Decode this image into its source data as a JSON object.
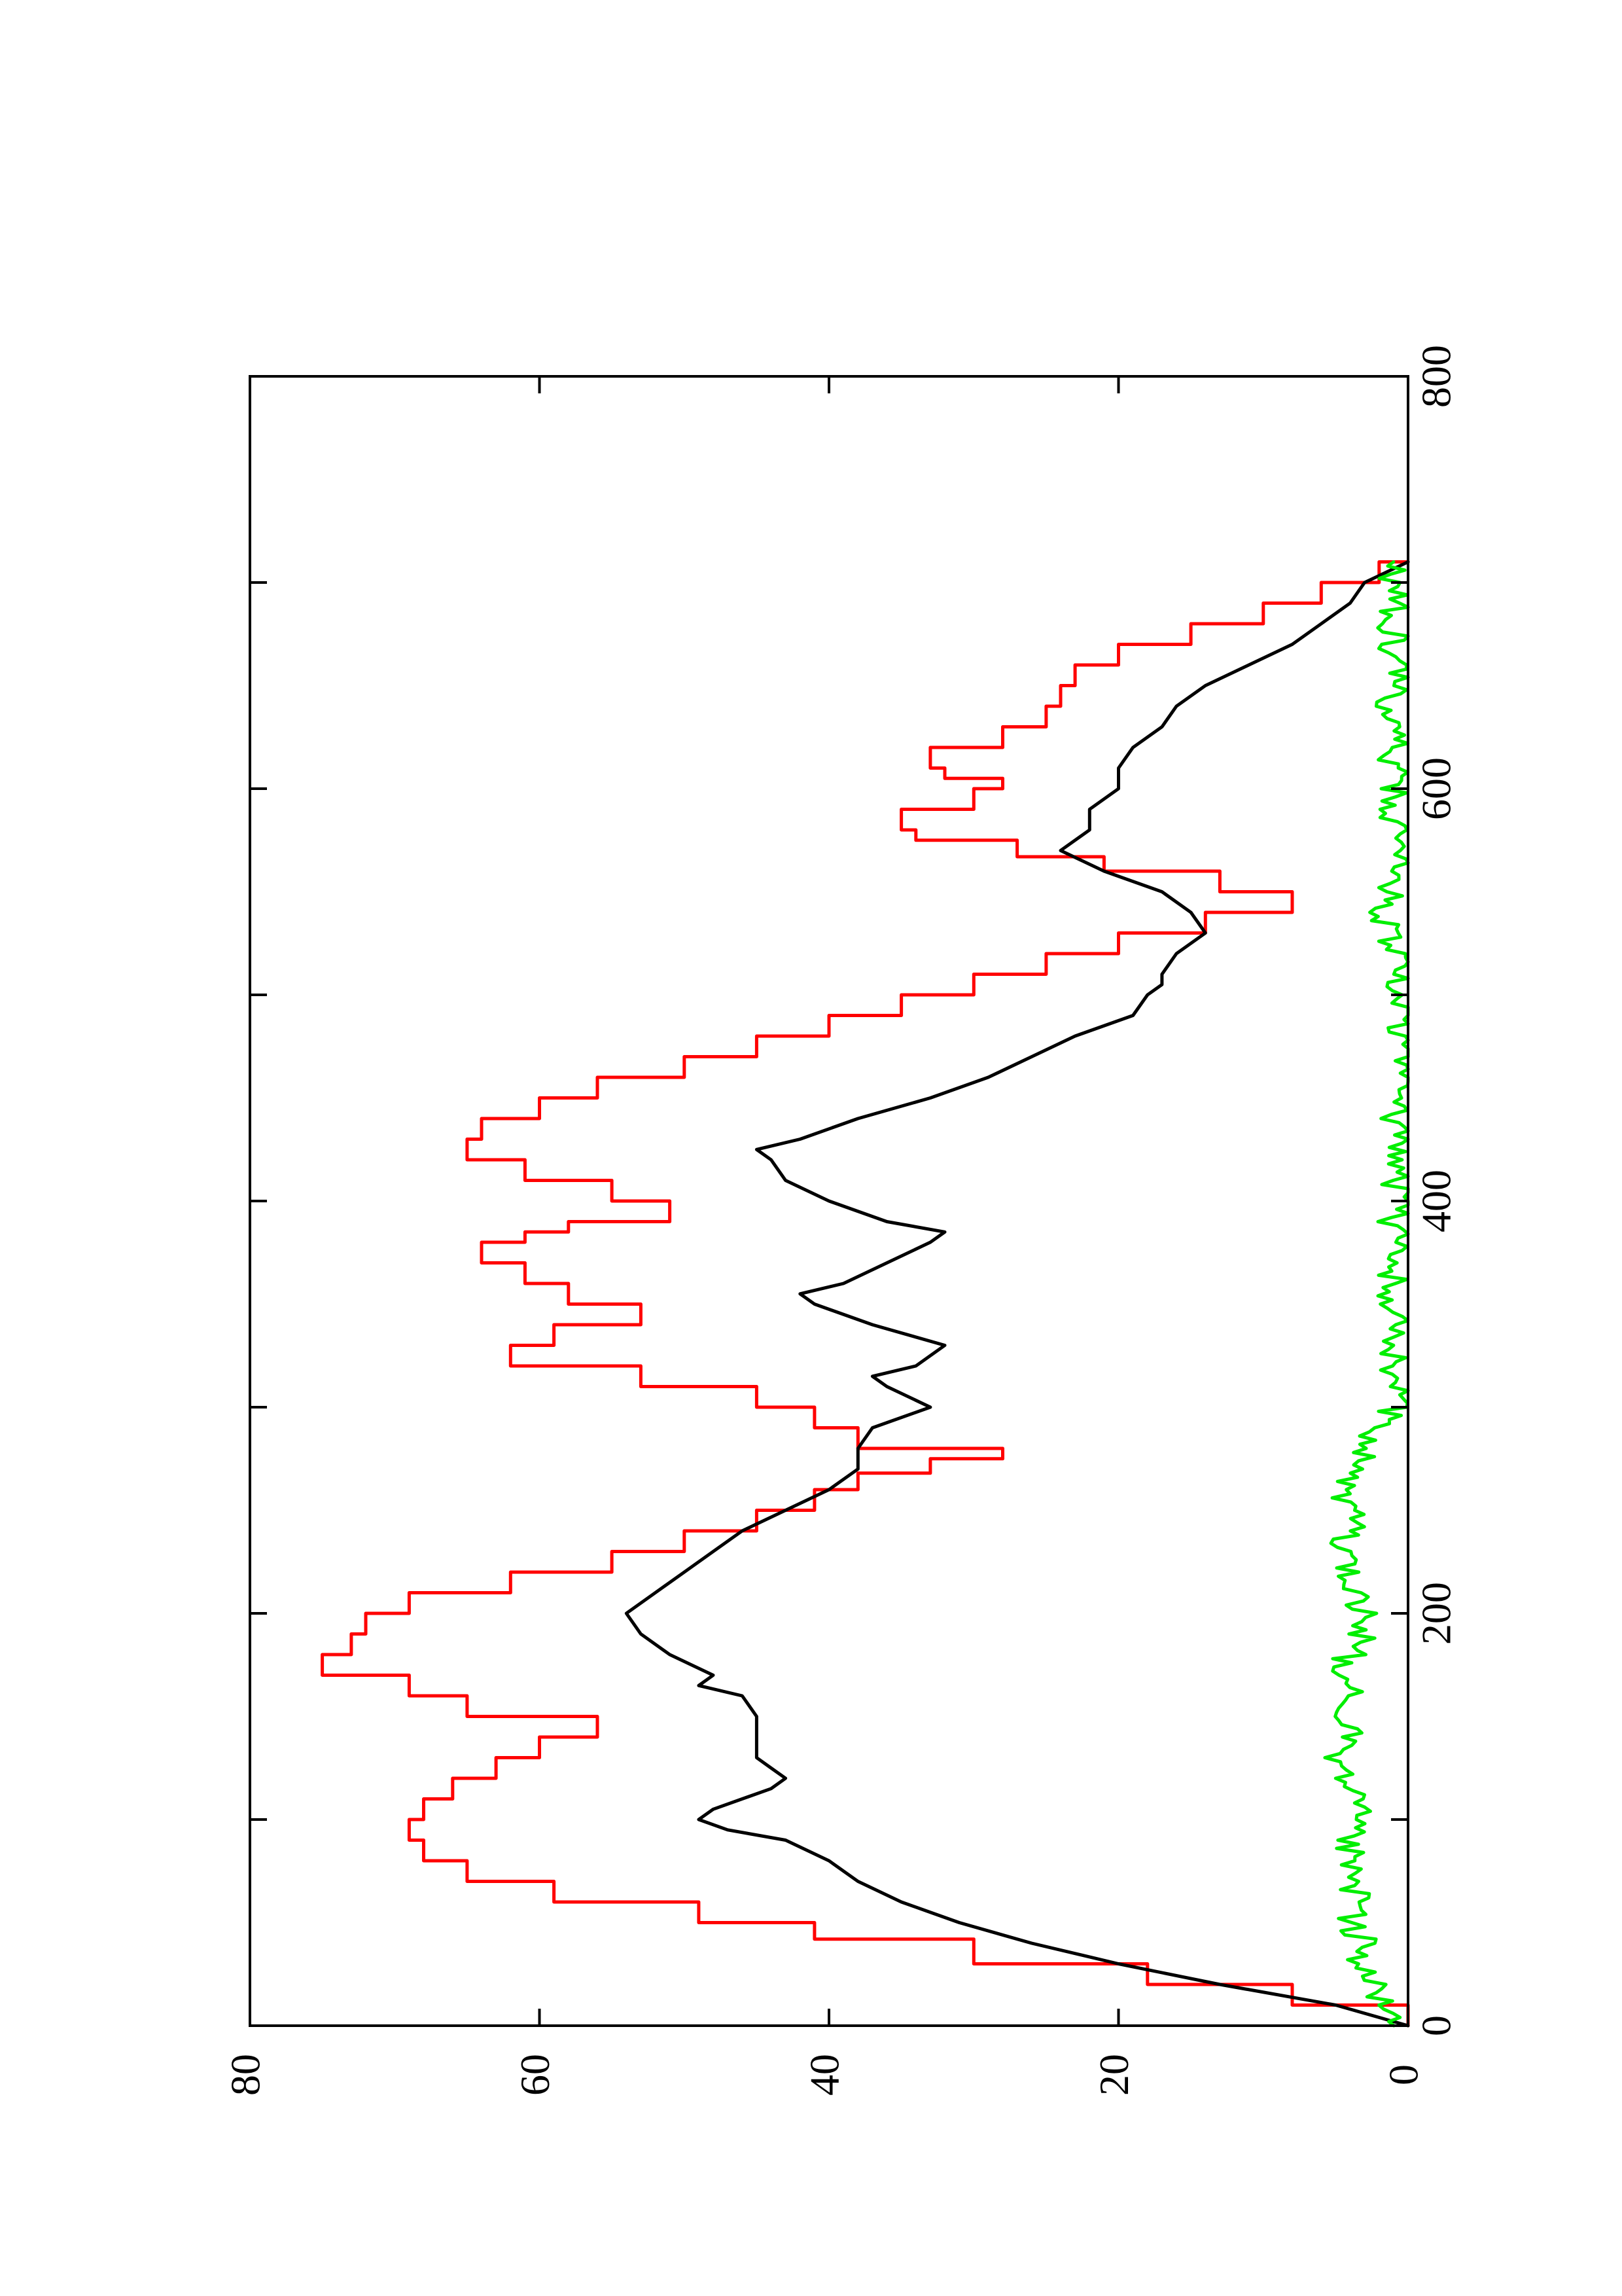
{
  "chart_data": {
    "type": "line",
    "orientation": "rotated-90-clockwise",
    "title": "",
    "xlabel": "",
    "ylabel": "",
    "xlim": [
      0,
      800
    ],
    "ylim": [
      0,
      80
    ],
    "x_ticks": [
      0,
      200,
      400,
      600,
      800
    ],
    "x_minor_ticks": [
      100,
      300,
      500,
      700
    ],
    "y_ticks": [
      0,
      20,
      40,
      60,
      80
    ],
    "x_tick_labels": [
      "0",
      "200",
      "400",
      "600",
      "800"
    ],
    "y_tick_labels": [
      "0",
      "20",
      "40",
      "60",
      "80"
    ],
    "grid": false,
    "legend": "none",
    "series": [
      {
        "color": "#ff0000",
        "style": "step",
        "x": [
          0,
          10,
          20,
          30,
          42,
          50,
          60,
          70,
          80,
          90,
          100,
          110,
          120,
          130,
          140,
          150,
          160,
          170,
          180,
          190,
          200,
          210,
          220,
          230,
          240,
          250,
          260,
          268,
          275,
          280,
          290,
          300,
          310,
          320,
          330,
          340,
          350,
          360,
          370,
          380,
          385,
          390,
          400,
          410,
          420,
          430,
          440,
          450,
          460,
          470,
          480,
          490,
          500,
          510,
          520,
          530,
          540,
          550,
          560,
          567,
          575,
          580,
          590,
          600,
          605,
          610,
          620,
          630,
          640,
          650,
          660,
          670,
          680,
          690,
          700,
          710
        ],
        "values": [
          0,
          8,
          18,
          30,
          41,
          49,
          59,
          65,
          68,
          69,
          68,
          66,
          63,
          60,
          56,
          65,
          69,
          75,
          73,
          72,
          69,
          62,
          55,
          50,
          45,
          41,
          38,
          33,
          28,
          38,
          41,
          45,
          53,
          62,
          59,
          53,
          58,
          61,
          64,
          61,
          58,
          51,
          55,
          61,
          65,
          64,
          60,
          56,
          50,
          45,
          40,
          35,
          30,
          25,
          20,
          14,
          8,
          13,
          21,
          27,
          34,
          35,
          30,
          28,
          32,
          33,
          28,
          25,
          24,
          23,
          20,
          15,
          10,
          6,
          2,
          0
        ]
      },
      {
        "color": "#000000",
        "style": "line",
        "x": [
          0,
          10,
          20,
          30,
          40,
          50,
          60,
          70,
          80,
          90,
          95,
          100,
          105,
          110,
          115,
          120,
          125,
          130,
          140,
          150,
          160,
          165,
          170,
          180,
          190,
          200,
          210,
          220,
          230,
          240,
          250,
          260,
          270,
          280,
          290,
          300,
          310,
          315,
          320,
          330,
          340,
          350,
          355,
          360,
          370,
          380,
          385,
          390,
          400,
          410,
          420,
          425,
          430,
          440,
          450,
          460,
          470,
          480,
          490,
          500,
          505,
          510,
          520,
          530,
          540,
          550,
          560,
          570,
          580,
          590,
          600,
          610,
          620,
          630,
          640,
          650,
          660,
          670,
          680,
          690,
          700,
          710
        ],
        "values": [
          0,
          5,
          13,
          20,
          26,
          31,
          35,
          38,
          40,
          43,
          47,
          49,
          48,
          46,
          44,
          43,
          44,
          45,
          45,
          45,
          46,
          49,
          48,
          51,
          53,
          54,
          52,
          50,
          48,
          46,
          43,
          40,
          38,
          38,
          37,
          33,
          36,
          37,
          34,
          32,
          37,
          41,
          42,
          39,
          36,
          33,
          32,
          36,
          40,
          43,
          44,
          45,
          42,
          38,
          33,
          29,
          26,
          23,
          19,
          18,
          17,
          17,
          16,
          14,
          15,
          17,
          21,
          24,
          22,
          22,
          20,
          20,
          19,
          17,
          16,
          14,
          11,
          8,
          6,
          4,
          3,
          0
        ]
      },
      {
        "color": "#00ee00",
        "style": "noisy",
        "x": [
          0,
          10,
          20,
          30,
          40,
          50,
          60,
          70,
          80,
          90,
          100,
          110,
          120,
          130,
          140,
          150,
          160,
          170,
          180,
          190,
          200,
          210,
          220,
          230,
          240,
          250,
          260,
          270,
          280,
          290,
          300,
          310,
          320,
          330,
          340,
          350,
          360,
          370,
          380,
          390,
          400,
          410,
          420,
          430,
          440,
          450,
          460,
          470,
          480,
          490,
          500,
          510,
          520,
          530,
          540,
          550,
          560,
          570,
          580,
          590,
          600,
          610,
          620,
          630,
          640,
          650,
          660,
          670,
          680,
          690,
          700,
          710
        ],
        "values": [
          1,
          2,
          2,
          4,
          3,
          4,
          3,
          4,
          4,
          4,
          3,
          4,
          4,
          5,
          4,
          4,
          4,
          5,
          4,
          3,
          3,
          4,
          4,
          5,
          4,
          4,
          5,
          4,
          3,
          2,
          1,
          1,
          1,
          1,
          0,
          1,
          1,
          1,
          0,
          1,
          0,
          1,
          1,
          0,
          1,
          1,
          0,
          0,
          1,
          0,
          1,
          0,
          1,
          1,
          2,
          1,
          1,
          0,
          1,
          1,
          1,
          1,
          1,
          1,
          2,
          1,
          1,
          1,
          1,
          1,
          1,
          1
        ]
      }
    ]
  }
}
